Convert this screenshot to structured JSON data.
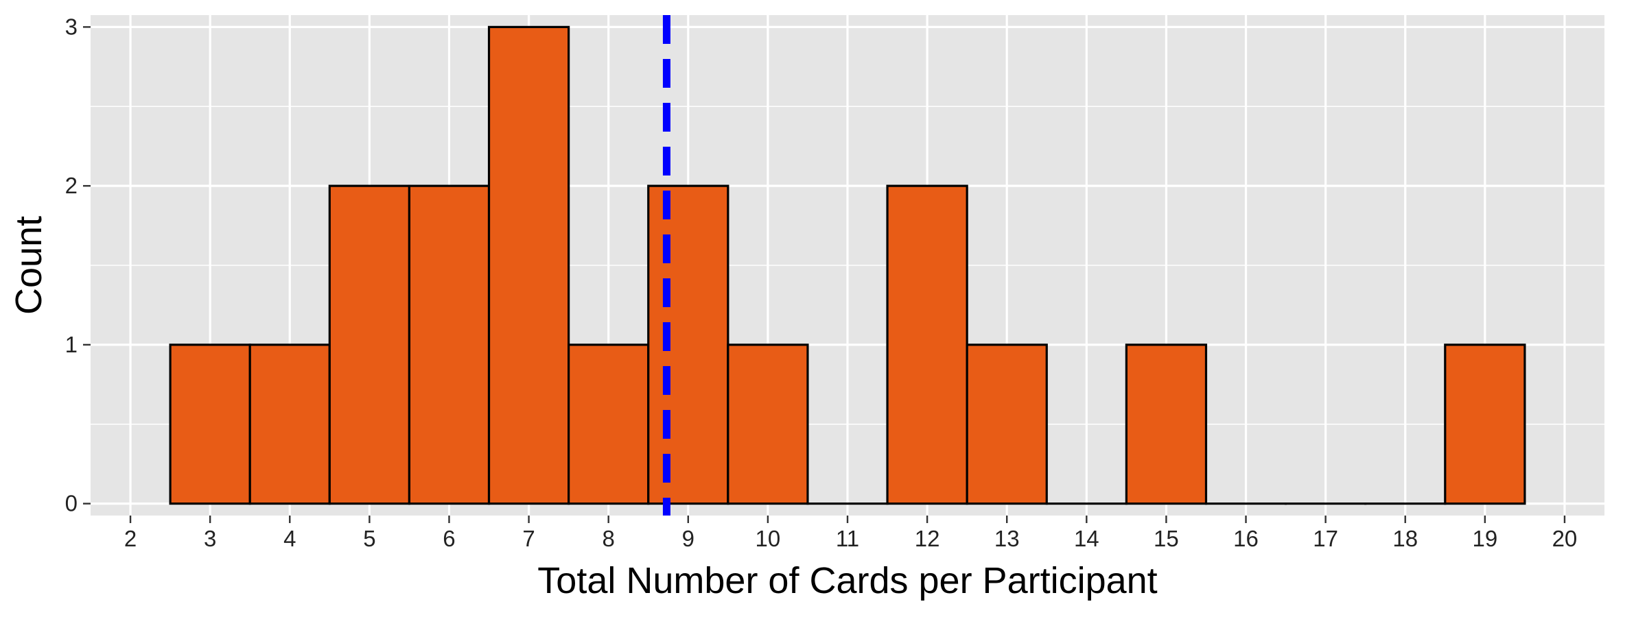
{
  "chart_data": {
    "type": "bar",
    "subtype": "histogram",
    "title": "",
    "xlabel": "Total Number of Cards per Participant",
    "ylabel": "Count",
    "x": [
      3,
      4,
      5,
      6,
      7,
      8,
      9,
      10,
      11,
      12,
      13,
      14,
      15,
      16,
      17,
      18,
      19
    ],
    "values": [
      1,
      1,
      2,
      2,
      3,
      1,
      2,
      1,
      0,
      2,
      1,
      0,
      1,
      0,
      0,
      0,
      1
    ],
    "bin_width": 1,
    "xlim": [
      1.5,
      20.5
    ],
    "ylim": [
      -0.075,
      3.075
    ],
    "x_ticks": [
      2,
      3,
      4,
      5,
      6,
      7,
      8,
      9,
      10,
      11,
      12,
      13,
      14,
      15,
      16,
      17,
      18,
      19,
      20
    ],
    "y_ticks": [
      0,
      1,
      2,
      3
    ],
    "mean_line": {
      "x": 8.73,
      "style": "dashed",
      "color": "#0000ff"
    },
    "bar_color": "#e85c16",
    "bar_outline": "#000000",
    "panel_background": "#e5e5e5",
    "grid": true,
    "legend": "none"
  }
}
